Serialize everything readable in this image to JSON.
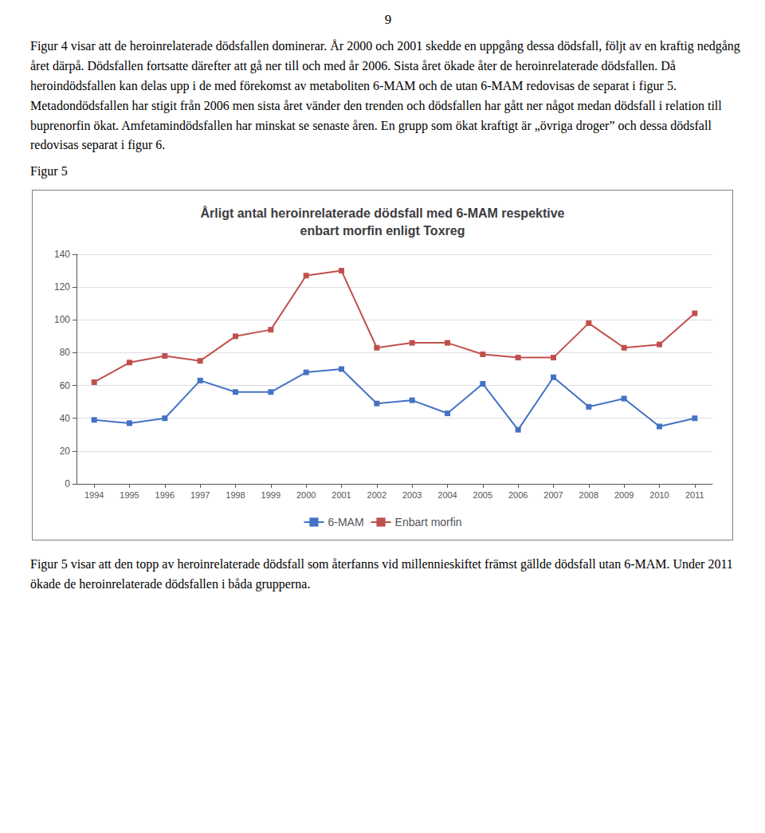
{
  "chart_data": {
    "type": "line",
    "title": "Årligt antal heroinrelaterade dödsfall med 6-MAM respektive\nenbart morfin enligt Toxreg",
    "x": [
      1994,
      1995,
      1996,
      1997,
      1998,
      1999,
      2000,
      2001,
      2002,
      2003,
      2004,
      2005,
      2006,
      2007,
      2008,
      2009,
      2010,
      2011
    ],
    "series": [
      {
        "name": "6-MAM",
        "color": "#4472C4",
        "values": [
          39,
          37,
          40,
          63,
          56,
          56,
          68,
          70,
          49,
          51,
          43,
          61,
          33,
          65,
          47,
          52,
          35,
          40
        ]
      },
      {
        "name": "Enbart morfin",
        "color": "#C0504D",
        "values": [
          62,
          74,
          78,
          75,
          90,
          94,
          127,
          130,
          83,
          86,
          86,
          79,
          77,
          77,
          98,
          83,
          85,
          104
        ]
      }
    ],
    "xlim": [
      1993.5,
      2011.5
    ],
    "xticks": [
      1994,
      1995,
      1996,
      1997,
      1998,
      1999,
      2000,
      2001,
      2002,
      2003,
      2004,
      2005,
      2006,
      2007,
      2008,
      2009,
      2010,
      2011
    ],
    "ylim": [
      0,
      140
    ],
    "yticks": [
      0,
      20,
      40,
      60,
      80,
      100,
      120,
      140
    ],
    "grid": true,
    "legend": "bottom",
    "marker": "square",
    "annotations": [
      "9",
      "Figur 4 visar att de heroinrelaterade dödsfallen dominerar. År 2000 och 2001 skedde en uppgång dessa dödsfall, följt av en kraftig nedgång året därpå. Dödsfallen fortsatte därefter att gå ner till och med år 2006. Sista året ökade åter de heroinrelaterade dödsfallen. Då heroindödsfallen kan delas upp i de med förekomst av metaboliten 6-MAM och de utan 6-MAM redovisas de separat i figur 5. Metadondödsfallen har stigit från 2006 men sista året vänder den trenden och dödsfallen har gått ner något medan dödsfall i relation till buprenorfin ökat. Amfetamindödsfallen har minskat se senaste åren. En grupp som ökat kraftigt är „övriga droger” och dessa dödsfall redovisas separat i figur 6.",
      "Figur 5",
      "Figur 5 visar att den topp av heroinrelaterade dödsfall som återfanns vid millennieskiftet främst gällde dödsfall utan 6-MAM. Under 2011 ökade de heroinrelaterade dödsfallen i båda grupperna."
    ]
  }
}
